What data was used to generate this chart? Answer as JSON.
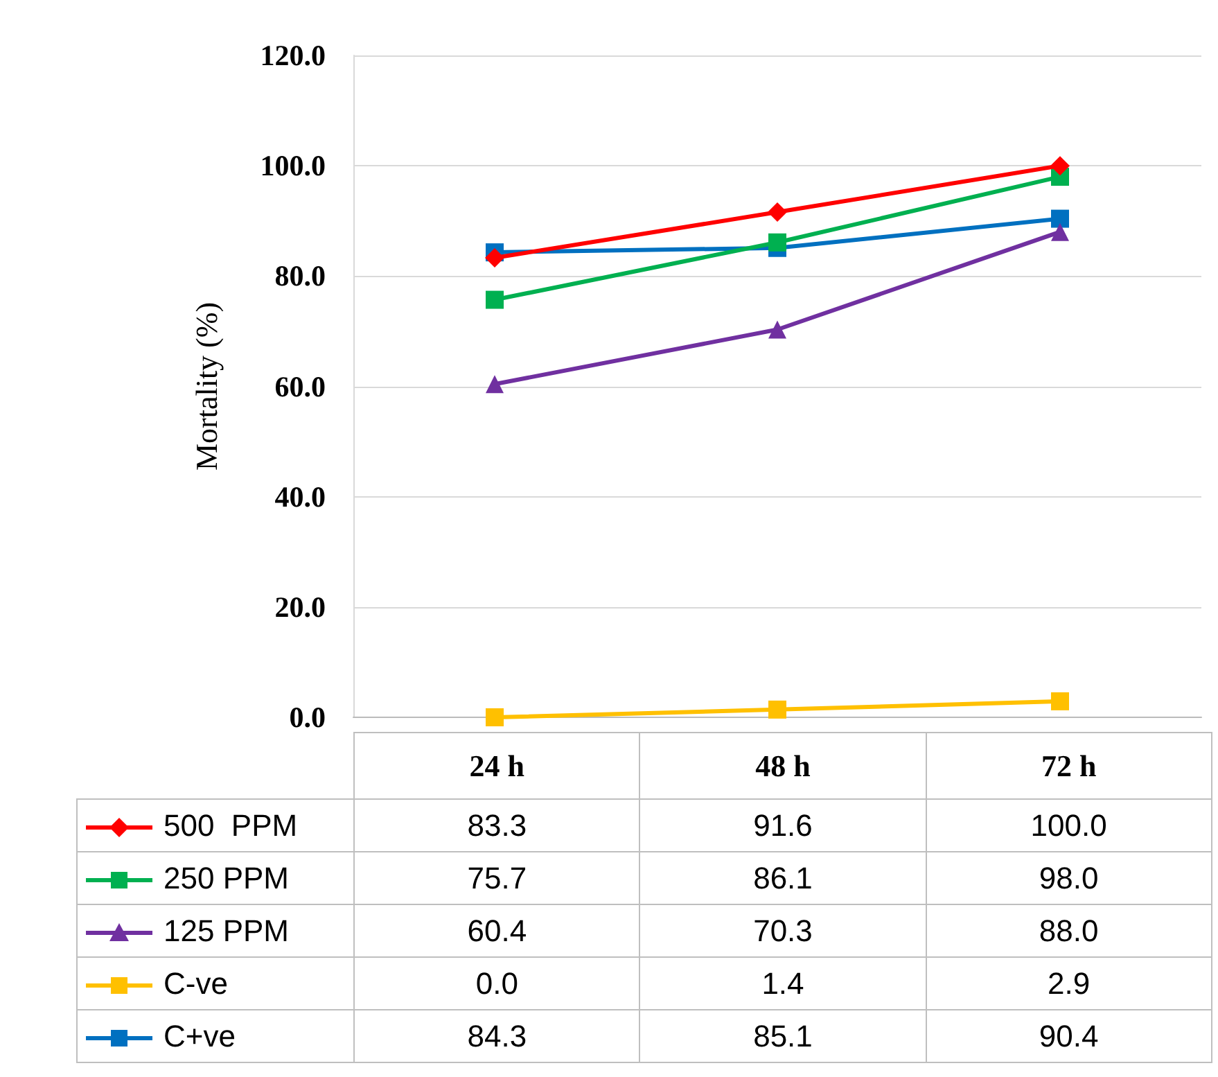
{
  "chart_data": {
    "type": "line",
    "ylabel": "Mortality (%)",
    "categories": [
      "24 h",
      "48 h",
      "72 h"
    ],
    "ylim": [
      0,
      120
    ],
    "yticks": [
      {
        "value": 0,
        "label": "0.0"
      },
      {
        "value": 20,
        "label": "20.0"
      },
      {
        "value": 40,
        "label": "40.0"
      },
      {
        "value": 60,
        "label": "60.0"
      },
      {
        "value": 80,
        "label": "80.0"
      },
      {
        "value": 100,
        "label": "100.0"
      },
      {
        "value": 120,
        "label": "120.0"
      }
    ],
    "grid": "y",
    "legend": "bottom",
    "line_style": "solid",
    "series": [
      {
        "name": "500  PPM",
        "color": "#ff0000",
        "marker": "diamond",
        "values": [
          83.3,
          91.6,
          100.0
        ],
        "value_labels": [
          "83.3",
          "91.6",
          "100.0"
        ]
      },
      {
        "name": "250 PPM",
        "color": "#00b050",
        "marker": "square",
        "values": [
          75.7,
          86.1,
          98.0
        ],
        "value_labels": [
          "75.7",
          "86.1",
          "98.0"
        ]
      },
      {
        "name": "125 PPM",
        "color": "#7030a0",
        "marker": "triangle",
        "values": [
          60.4,
          70.3,
          88.0
        ],
        "value_labels": [
          "60.4",
          "70.3",
          "88.0"
        ]
      },
      {
        "name": "C-ve",
        "color": "#ffc000",
        "marker": "square",
        "values": [
          0.0,
          1.4,
          2.9
        ],
        "value_labels": [
          "0.0",
          "1.4",
          "2.9"
        ]
      },
      {
        "name": "C+ve",
        "color": "#0070c0",
        "marker": "square",
        "values": [
          84.3,
          85.1,
          90.4
        ],
        "value_labels": [
          "84.3",
          "85.1",
          "90.4"
        ]
      }
    ]
  }
}
